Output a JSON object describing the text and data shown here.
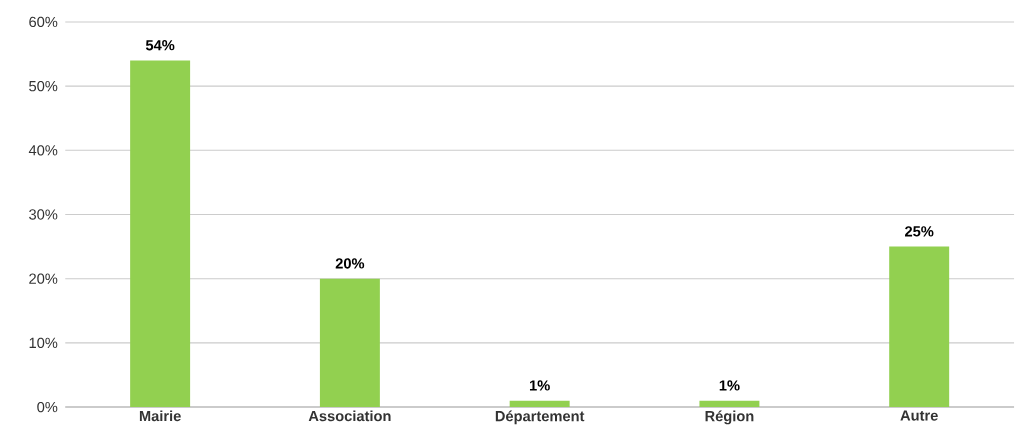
{
  "chart_data": {
    "type": "bar",
    "categories": [
      "Mairie",
      "Association",
      "Département",
      "Région",
      "Autre"
    ],
    "values": [
      54,
      20,
      1,
      1,
      25
    ],
    "value_labels": [
      "54%",
      "20%",
      "1%",
      "1%",
      "25%"
    ],
    "color": "#92d050",
    "ylim": [
      0,
      60
    ],
    "yticks": [
      {
        "value": 0,
        "label": "0%"
      },
      {
        "value": 10,
        "label": "10%"
      },
      {
        "value": 20,
        "label": "20%"
      },
      {
        "value": 30,
        "label": "30%"
      },
      {
        "value": 40,
        "label": "40%"
      },
      {
        "value": 50,
        "label": "50%"
      },
      {
        "value": 60,
        "label": "60%"
      }
    ],
    "grid": "y"
  }
}
